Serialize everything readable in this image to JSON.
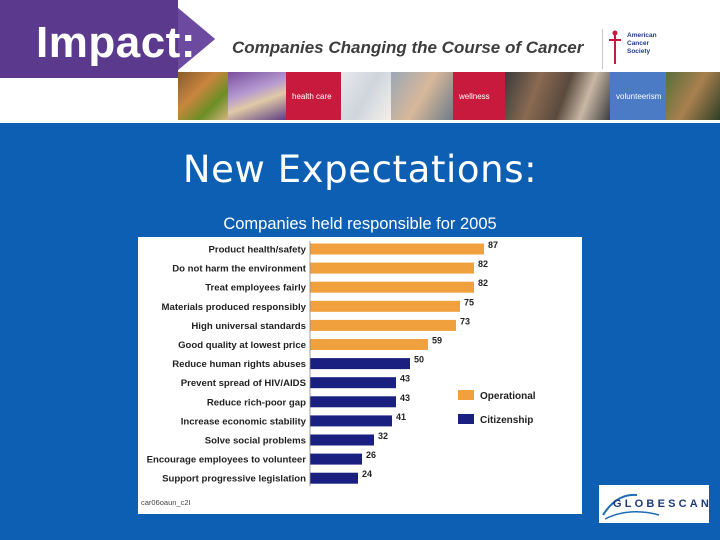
{
  "header": {
    "impact_label": "Impact:",
    "title": "Companies Changing the Course of Cancer",
    "acs_logo_lines": [
      "American",
      "Cancer",
      "Society"
    ],
    "strip_labels": [
      "health care",
      "wellness",
      "volunteerism"
    ]
  },
  "slide": {
    "title": "New Expectations:",
    "subtitle": "Companies held responsible for 2005",
    "source_code": "car06oaun_c2I"
  },
  "logos": {
    "globescan": "GLOBESCAN"
  },
  "colors": {
    "operational": "#f0a03c",
    "citizenship": "#1a2080",
    "background": "#0d5fb3",
    "strip_red": "#c71a3c",
    "impact_purple": "#5b3a8e"
  },
  "chart_data": {
    "type": "bar",
    "orientation": "horizontal",
    "title": "Companies held responsible for 2005",
    "categories": [
      "Product health/safety",
      "Do not harm the environment",
      "Treat employees fairly",
      "Materials produced responsibly",
      "High universal standards",
      "Good quality at lowest price",
      "Reduce human rights abuses",
      "Prevent spread of HIV/AIDS",
      "Reduce rich-poor gap",
      "Increase economic stability",
      "Solve social problems",
      "Encourage employees to volunteer",
      "Support progressive legislation"
    ],
    "values": [
      87,
      82,
      82,
      75,
      73,
      59,
      50,
      43,
      43,
      41,
      32,
      26,
      24
    ],
    "groups": [
      "Operational",
      "Operational",
      "Operational",
      "Operational",
      "Operational",
      "Operational",
      "Citizenship",
      "Citizenship",
      "Citizenship",
      "Citizenship",
      "Citizenship",
      "Citizenship",
      "Citizenship"
    ],
    "legend": [
      {
        "name": "Operational",
        "color": "#f0a03c"
      },
      {
        "name": "Citizenship",
        "color": "#1a2080"
      }
    ],
    "xlim": [
      0,
      100
    ],
    "legend_position": "right"
  }
}
